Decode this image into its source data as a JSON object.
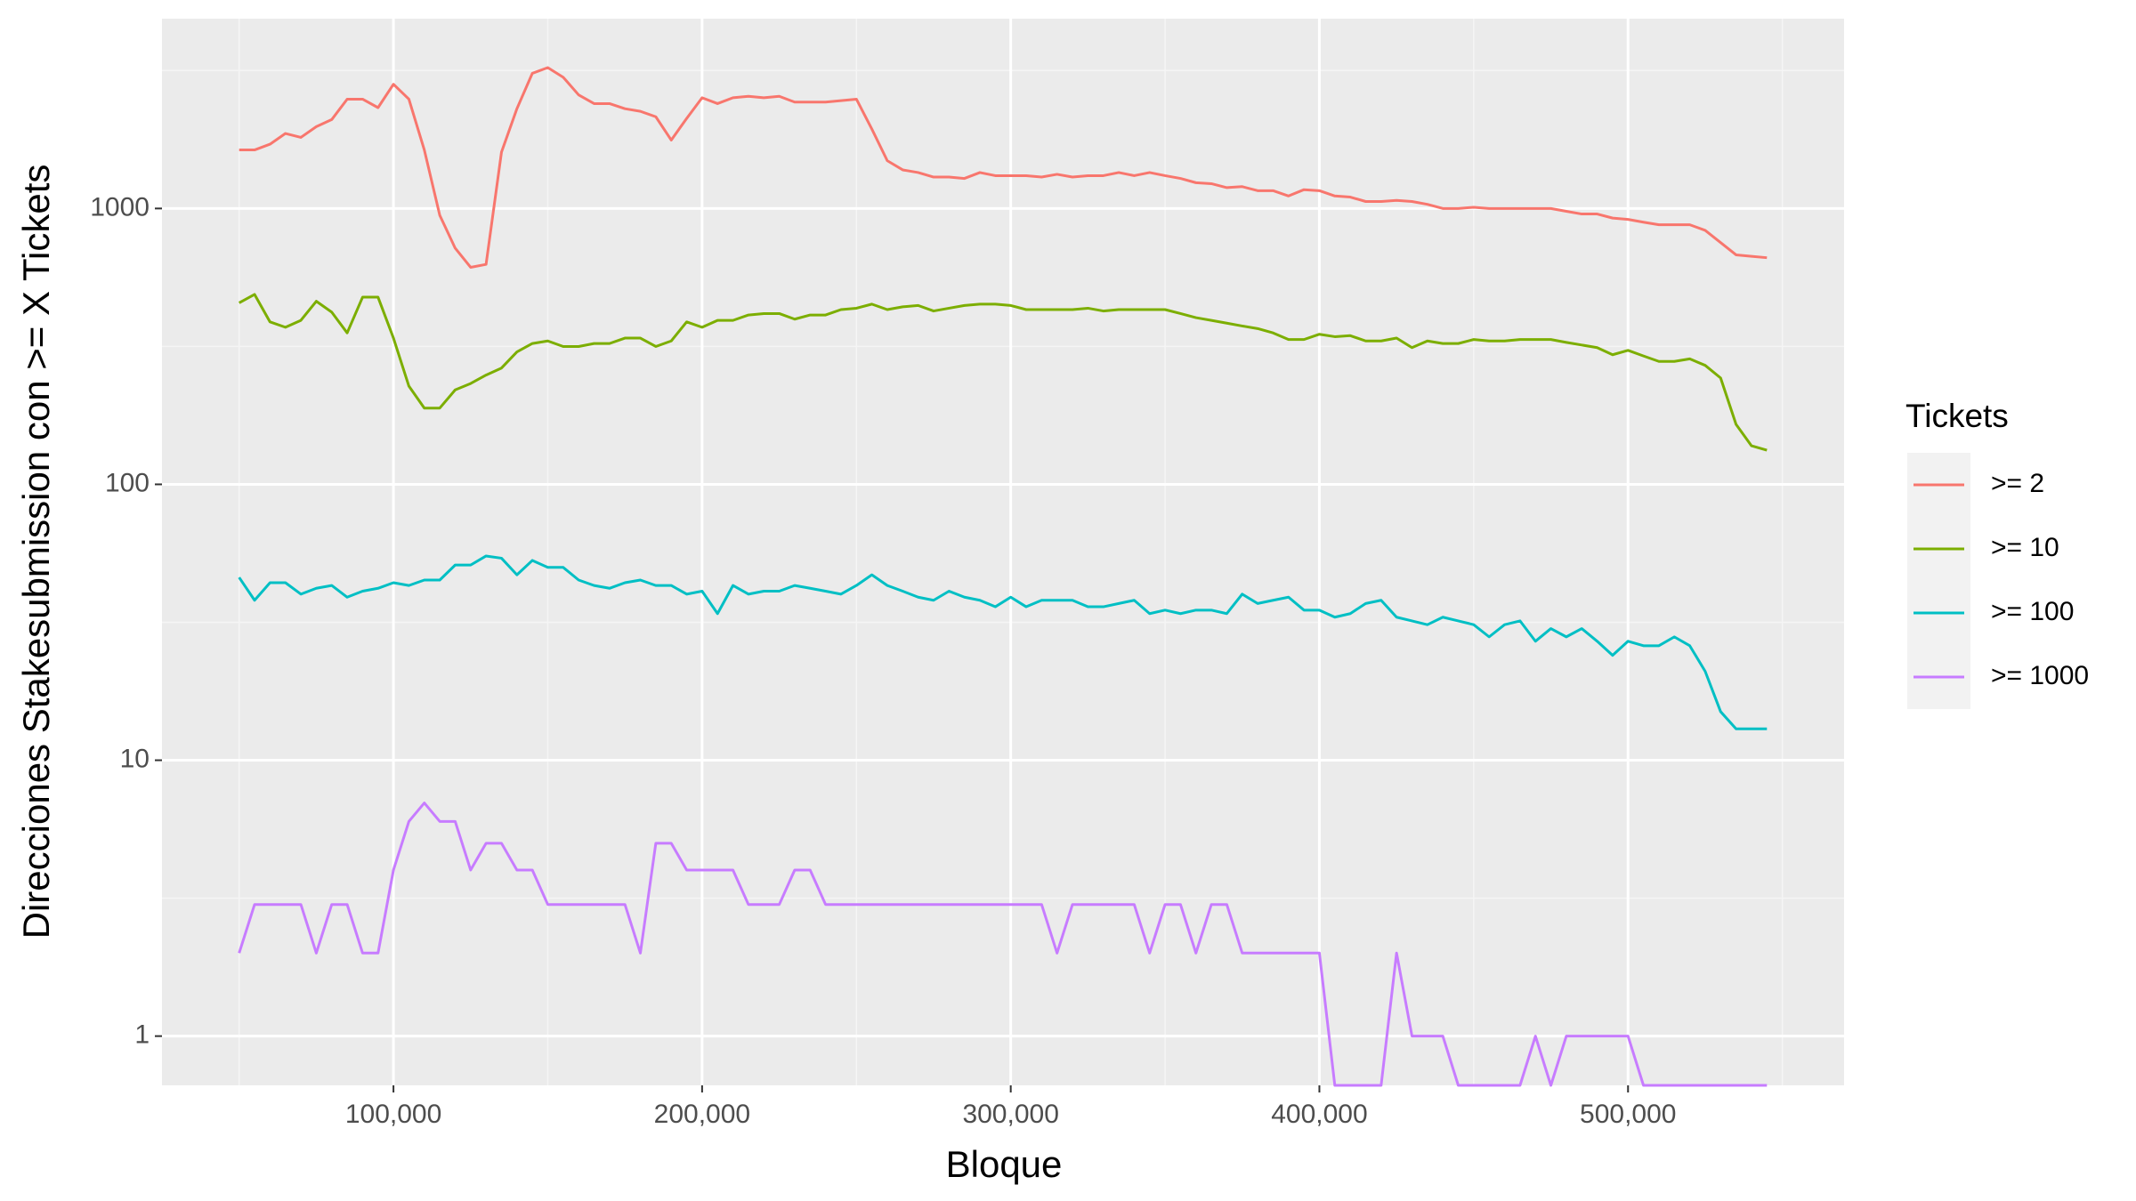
{
  "chart_data": {
    "type": "line",
    "xlabel": "Bloque",
    "ylabel": "Direcciones Stakesubmission con >= X Tickets",
    "legend_title": "Tickets",
    "legend_position": "right",
    "log_y": true,
    "grid": true,
    "xlim": [
      25000,
      570000
    ],
    "ylim": [
      0.663,
      4875
    ],
    "xticks": [
      {
        "value": 100000,
        "label": "100,000"
      },
      {
        "value": 200000,
        "label": "200,000"
      },
      {
        "value": 300000,
        "label": "300,000"
      },
      {
        "value": 400000,
        "label": "400,000"
      },
      {
        "value": 500000,
        "label": "500,000"
      }
    ],
    "yticks": [
      1,
      10,
      100,
      1000
    ],
    "x": [
      50000,
      55000,
      60000,
      65000,
      70000,
      75000,
      80000,
      85000,
      90000,
      95000,
      100000,
      105000,
      110000,
      115000,
      120000,
      125000,
      130000,
      135000,
      140000,
      145000,
      150000,
      155000,
      160000,
      165000,
      170000,
      175000,
      180000,
      185000,
      190000,
      195000,
      200000,
      205000,
      210000,
      215000,
      220000,
      225000,
      230000,
      235000,
      240000,
      245000,
      250000,
      255000,
      260000,
      265000,
      270000,
      275000,
      280000,
      285000,
      290000,
      295000,
      300000,
      305000,
      310000,
      315000,
      320000,
      325000,
      330000,
      335000,
      340000,
      345000,
      350000,
      355000,
      360000,
      365000,
      370000,
      375000,
      380000,
      385000,
      390000,
      395000,
      400000,
      405000,
      410000,
      415000,
      420000,
      425000,
      430000,
      435000,
      440000,
      445000,
      450000,
      455000,
      460000,
      465000,
      470000,
      475000,
      480000,
      485000,
      490000,
      495000,
      500000,
      505000,
      510000,
      515000,
      520000,
      525000,
      530000,
      535000,
      540000,
      545000
    ],
    "series": [
      {
        "name": ">= 2",
        "color": "#F8766D",
        "values": [
          1630,
          1630,
          1710,
          1870,
          1810,
          1980,
          2100,
          2490,
          2490,
          2320,
          2820,
          2490,
          1630,
          945,
          718,
          612,
          627,
          1600,
          2300,
          3090,
          3240,
          2990,
          2580,
          2400,
          2400,
          2300,
          2250,
          2150,
          1770,
          2120,
          2520,
          2400,
          2520,
          2550,
          2520,
          2550,
          2430,
          2430,
          2430,
          2460,
          2490,
          1940,
          1490,
          1380,
          1350,
          1300,
          1300,
          1285,
          1350,
          1315,
          1315,
          1315,
          1300,
          1330,
          1300,
          1315,
          1315,
          1350,
          1315,
          1350,
          1315,
          1285,
          1240,
          1230,
          1190,
          1200,
          1160,
          1160,
          1110,
          1170,
          1160,
          1110,
          1100,
          1060,
          1060,
          1070,
          1060,
          1035,
          1000,
          1000,
          1010,
          1000,
          1000,
          1000,
          1000,
          1000,
          977,
          955,
          955,
          923,
          913,
          892,
          873,
          873,
          873,
          833,
          752,
          679,
          671,
          663
        ]
      },
      {
        "name": ">= 10",
        "color": "#7CAE00",
        "values": [
          455,
          488,
          388,
          371,
          393,
          461,
          421,
          354,
          477,
          477,
          339,
          227,
          189,
          189,
          220,
          232,
          249,
          264,
          302,
          324,
          331,
          316,
          316,
          324,
          324,
          339,
          339,
          316,
          331,
          388,
          371,
          393,
          393,
          411,
          416,
          416,
          397,
          411,
          411,
          430,
          435,
          450,
          430,
          440,
          445,
          425,
          435,
          445,
          450,
          450,
          445,
          430,
          430,
          430,
          430,
          435,
          425,
          430,
          430,
          430,
          430,
          416,
          402,
          393,
          384,
          375,
          367,
          354,
          335,
          335,
          350,
          343,
          346,
          331,
          331,
          339,
          313,
          331,
          324,
          324,
          335,
          331,
          331,
          335,
          335,
          335,
          327,
          320,
          313,
          295,
          306,
          292,
          279,
          279,
          285,
          270,
          243,
          165,
          138,
          133
        ]
      },
      {
        "name": ">= 100",
        "color": "#00BFC4",
        "values": [
          46,
          38,
          44,
          44,
          40,
          42,
          43,
          39,
          41,
          42,
          44,
          43,
          45,
          45,
          51,
          51,
          55,
          54,
          47,
          53,
          50,
          50,
          45,
          43,
          42,
          44,
          45,
          43,
          43,
          40,
          41,
          34,
          43,
          40,
          41,
          41,
          43,
          42,
          41,
          40,
          43,
          47,
          43,
          41,
          39,
          38,
          41,
          39,
          38,
          36,
          39,
          36,
          38,
          38,
          38,
          36,
          36,
          37,
          38,
          34,
          35,
          34,
          35,
          35,
          34,
          40,
          37,
          38,
          39,
          35,
          35,
          33,
          34,
          37,
          38,
          33,
          32,
          31,
          33,
          32,
          31,
          28,
          31,
          32,
          27,
          30,
          28,
          30,
          27,
          24,
          27,
          26,
          26,
          28,
          26,
          21,
          15,
          13,
          13,
          13
        ]
      },
      {
        "name": ">= 1000",
        "color": "#C77CFF",
        "values": [
          2,
          3,
          3,
          3,
          3,
          2,
          3,
          3,
          2,
          2,
          4,
          6,
          7,
          6,
          6,
          4,
          5,
          5,
          4,
          4,
          3,
          3,
          3,
          3,
          3,
          3,
          2,
          5,
          5,
          4,
          4,
          4,
          4,
          3,
          3,
          3,
          4,
          4,
          3,
          3,
          3,
          3,
          3,
          3,
          3,
          3,
          3,
          3,
          3,
          3,
          3,
          3,
          3,
          2,
          3,
          3,
          3,
          3,
          3,
          2,
          3,
          3,
          2,
          3,
          3,
          2,
          2,
          2,
          2,
          2,
          2,
          0,
          0,
          0,
          0,
          2,
          1,
          1,
          1,
          0,
          0,
          0,
          0,
          0,
          1,
          0,
          1,
          1,
          1,
          1,
          1,
          0,
          0,
          0,
          0,
          0,
          0,
          0,
          0,
          0
        ]
      }
    ]
  }
}
